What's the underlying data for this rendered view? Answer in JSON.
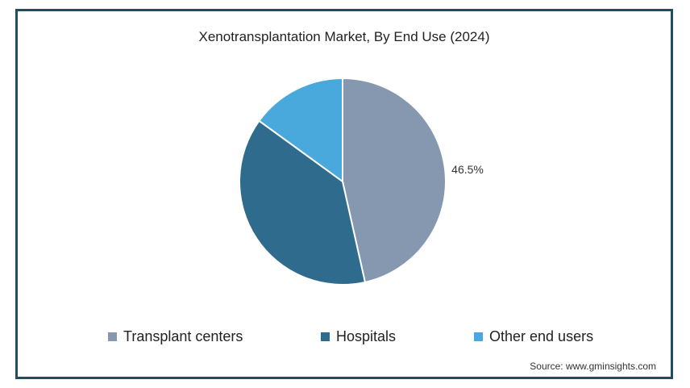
{
  "chart_data": {
    "type": "pie",
    "title": "Xenotransplantation Market, By End Use (2024)",
    "slices": [
      {
        "label": "Transplant centers",
        "value": 46.5,
        "color": "#8598b0",
        "data_label": "46.5%"
      },
      {
        "label": "Hospitals",
        "value": 38.5,
        "color": "#2f6b8c",
        "data_label": ""
      },
      {
        "label": "Other end users",
        "value": 15.0,
        "color": "#4aa9dc",
        "data_label": ""
      }
    ],
    "legend_position": "bottom"
  },
  "source": "Source: www.gminsights.com"
}
